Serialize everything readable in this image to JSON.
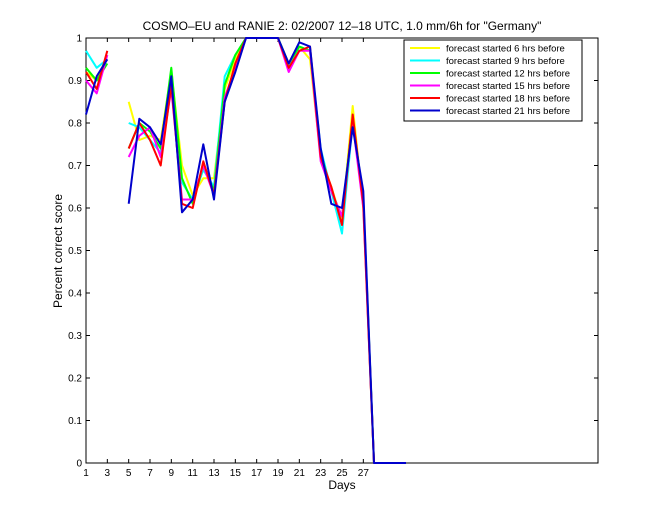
{
  "chart_data": {
    "type": "line",
    "title": "COSMO–EU and RANIE 2: 02/2007 12–18 UTC, 1.0 mm/6h for \"Germany\"",
    "xlabel": "Days",
    "ylabel": "Percent correct score",
    "xlim": [
      1,
      49
    ],
    "ylim": [
      0,
      1
    ],
    "xticks": [
      1,
      3,
      5,
      7,
      9,
      11,
      13,
      15,
      17,
      19,
      21,
      23,
      25,
      27
    ],
    "yticks": [
      0,
      0.1,
      0.2,
      0.3,
      0.4,
      0.5,
      0.6,
      0.7,
      0.8,
      0.9,
      1
    ],
    "legend_position": "top-right",
    "grid": false,
    "series": [
      {
        "name": "forecast started 6 hrs before",
        "color": "#ffff00",
        "segments": [
          {
            "x": [
              1,
              2,
              3
            ],
            "y": [
              0.92,
              0.9,
              0.96
            ]
          },
          {
            "x": [
              5,
              6,
              7,
              8,
              9,
              10,
              11,
              12,
              13,
              14,
              15,
              16,
              17,
              18,
              19,
              20,
              21,
              22,
              23,
              24,
              25,
              26,
              27,
              28,
              29,
              30,
              31
            ],
            "y": [
              0.85,
              0.76,
              0.77,
              0.76,
              0.92,
              0.7,
              0.63,
              0.67,
              0.67,
              0.88,
              0.95,
              1.0,
              1.0,
              1.0,
              1.0,
              0.94,
              0.98,
              0.95,
              0.72,
              0.65,
              0.57,
              0.84,
              0.6,
              0.0,
              0.0,
              0.0,
              0.0
            ]
          }
        ]
      },
      {
        "name": "forecast started 9 hrs before",
        "color": "#00ffff",
        "segments": [
          {
            "x": [
              1,
              2,
              3
            ],
            "y": [
              0.97,
              0.93,
              0.95
            ]
          },
          {
            "x": [
              5,
              6,
              7,
              8,
              9,
              10,
              11,
              12,
              13,
              14,
              15,
              16,
              17,
              18,
              19,
              20,
              21,
              22,
              23,
              24,
              25,
              26,
              27,
              28,
              29,
              30,
              31
            ],
            "y": [
              0.8,
              0.79,
              0.76,
              0.73,
              0.92,
              0.66,
              0.62,
              0.69,
              0.65,
              0.91,
              0.96,
              1.0,
              1.0,
              1.0,
              1.0,
              0.93,
              0.98,
              0.97,
              0.74,
              0.64,
              0.54,
              0.8,
              0.62,
              0.0,
              0.0,
              0.0,
              0.0
            ]
          }
        ]
      },
      {
        "name": "forecast started 12 hrs before",
        "color": "#00ff00",
        "segments": [
          {
            "x": [
              1,
              2,
              3
            ],
            "y": [
              0.93,
              0.9,
              0.94
            ]
          },
          {
            "x": [
              5,
              6,
              7,
              8,
              9,
              10,
              11,
              12,
              13,
              14,
              15,
              16,
              17,
              18,
              19,
              20,
              21,
              22,
              23,
              24,
              25,
              26,
              27,
              28,
              29,
              30,
              31
            ],
            "y": [
              0.74,
              0.8,
              0.78,
              0.74,
              0.93,
              0.67,
              0.61,
              0.7,
              0.64,
              0.89,
              0.96,
              1.0,
              1.0,
              1.0,
              1.0,
              0.94,
              0.98,
              0.97,
              0.73,
              0.64,
              0.58,
              0.81,
              0.62,
              0.0,
              0.0,
              0.0,
              0.0
            ]
          }
        ]
      },
      {
        "name": "forecast started 15 hrs before",
        "color": "#ff00ff",
        "segments": [
          {
            "x": [
              1,
              2,
              3
            ],
            "y": [
              0.9,
              0.87,
              0.96
            ]
          },
          {
            "x": [
              5,
              6,
              7,
              8,
              9,
              10,
              11,
              12,
              13,
              14,
              15,
              16,
              17,
              18,
              19,
              20,
              21,
              22,
              23,
              24,
              25,
              26,
              27,
              28,
              29,
              30,
              31
            ],
            "y": [
              0.72,
              0.77,
              0.79,
              0.72,
              0.88,
              0.62,
              0.62,
              0.7,
              0.63,
              0.86,
              0.93,
              1.0,
              1.0,
              1.0,
              1.0,
              0.92,
              0.97,
              0.97,
              0.71,
              0.64,
              0.58,
              0.8,
              0.6,
              0.0,
              0.0,
              0.0,
              0.0
            ]
          }
        ]
      },
      {
        "name": "forecast started 18 hrs before",
        "color": "#ff0000",
        "segments": [
          {
            "x": [
              1,
              2,
              3
            ],
            "y": [
              0.92,
              0.88,
              0.97
            ]
          },
          {
            "x": [
              5,
              6,
              7,
              8,
              9,
              10,
              11,
              12,
              13,
              14,
              15,
              16,
              17,
              18,
              19,
              20,
              21,
              22,
              23,
              24,
              25,
              26,
              27,
              28,
              29,
              30,
              31
            ],
            "y": [
              0.74,
              0.8,
              0.76,
              0.7,
              0.89,
              0.61,
              0.6,
              0.71,
              0.63,
              0.85,
              0.94,
              1.0,
              1.0,
              1.0,
              1.0,
              0.93,
              0.97,
              0.98,
              0.72,
              0.65,
              0.56,
              0.82,
              0.61,
              0.0,
              0.0,
              0.0,
              0.0
            ]
          }
        ]
      },
      {
        "name": "forecast started 21 hrs before",
        "color": "#0000cc",
        "segments": [
          {
            "x": [
              1,
              2,
              3
            ],
            "y": [
              0.82,
              0.91,
              0.95
            ]
          },
          {
            "x": [
              5,
              6,
              7,
              8,
              9,
              10,
              11,
              12,
              13,
              14,
              15,
              16,
              17,
              18,
              19,
              20,
              21,
              22,
              23,
              24,
              25,
              26,
              27,
              28,
              29,
              30,
              31
            ],
            "y": [
              0.61,
              0.81,
              0.79,
              0.75,
              0.91,
              0.59,
              0.62,
              0.75,
              0.62,
              0.85,
              0.92,
              1.0,
              1.0,
              1.0,
              1.0,
              0.94,
              0.99,
              0.98,
              0.74,
              0.61,
              0.6,
              0.79,
              0.64,
              0.0,
              0.0,
              0.0,
              0.0
            ]
          }
        ]
      }
    ]
  }
}
